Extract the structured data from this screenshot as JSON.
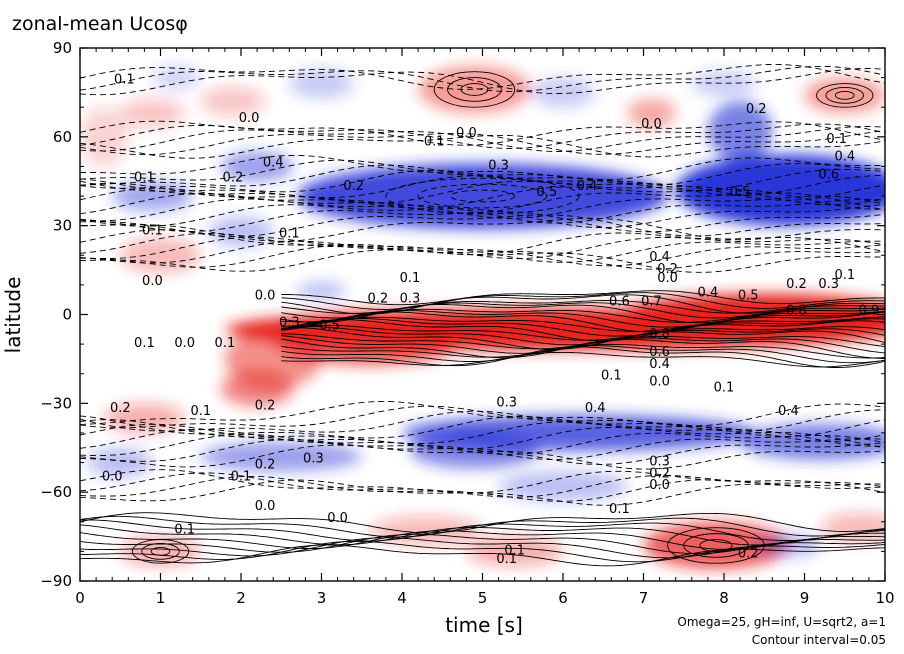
{
  "chart_data": {
    "type": "heatmap",
    "title": "zonal-mean Ucosφ",
    "xlabel": "time [s]",
    "ylabel": "latitude",
    "xlim": [
      0,
      10
    ],
    "ylim": [
      -90,
      90
    ],
    "x_ticks": [
      "0",
      "1",
      "2",
      "3",
      "4",
      "5",
      "6",
      "7",
      "8",
      "9",
      "10"
    ],
    "y_ticks": [
      "90",
      "60",
      "30",
      "0",
      "−30",
      "−60",
      "−90"
    ],
    "colormap": {
      "negative": "#1f2bd6",
      "zero": "#ffffff",
      "positive": "#e8201c"
    },
    "contour_style": "solid for positive values, dashed for negative values",
    "contour_interval": 0.05,
    "notes": [
      "Omega=25, gH=inf, U=sqrt2, a=1",
      "Contour interval=0.05"
    ],
    "features": [
      {
        "kind": "jet",
        "t": [
          0,
          10
        ],
        "lat": -5,
        "sign": 1,
        "peak": 0.9
      },
      {
        "kind": "band",
        "t": [
          0,
          10
        ],
        "lat": 40,
        "sign": -1,
        "peak": 0.6
      },
      {
        "kind": "band",
        "t": [
          0,
          10
        ],
        "lat": -40,
        "sign": -1,
        "peak": 0.4
      },
      {
        "kind": "band",
        "t": [
          0,
          10
        ],
        "lat": -75,
        "sign": 1,
        "peak": 0.3
      },
      {
        "kind": "band",
        "t": [
          0,
          10
        ],
        "lat": 75,
        "sign": 1,
        "peak": 0.2
      }
    ],
    "contour_labels": [
      {
        "t": 0.55,
        "lat": 78,
        "text": "0.1"
      },
      {
        "t": 2.1,
        "lat": 65,
        "text": "0.0"
      },
      {
        "t": 1.9,
        "lat": 45,
        "text": "0.2"
      },
      {
        "t": 2.4,
        "lat": 50,
        "text": "0.4"
      },
      {
        "t": 0.8,
        "lat": 45,
        "text": "0.1"
      },
      {
        "t": 0.9,
        "lat": 27,
        "text": "0.1"
      },
      {
        "t": 2.6,
        "lat": 26,
        "text": "0.1"
      },
      {
        "t": 4.8,
        "lat": 60,
        "text": "0.0"
      },
      {
        "t": 4.4,
        "lat": 57,
        "text": "0.1"
      },
      {
        "t": 3.4,
        "lat": 42,
        "text": "0.2"
      },
      {
        "t": 5.2,
        "lat": 49,
        "text": "0.3"
      },
      {
        "t": 5.8,
        "lat": 40,
        "text": "0.5"
      },
      {
        "t": 6.3,
        "lat": 42,
        "text": "0.4"
      },
      {
        "t": 7.1,
        "lat": 63,
        "text": "0.0"
      },
      {
        "t": 8.4,
        "lat": 68,
        "text": "0.2"
      },
      {
        "t": 8.2,
        "lat": 40,
        "text": "0.5"
      },
      {
        "t": 9.4,
        "lat": 58,
        "text": "0.1"
      },
      {
        "t": 9.5,
        "lat": 52,
        "text": "0.4"
      },
      {
        "t": 9.3,
        "lat": 46,
        "text": "0.6"
      },
      {
        "t": 0.9,
        "lat": 10,
        "text": "0.0"
      },
      {
        "t": 2.3,
        "lat": 5,
        "text": "0.0"
      },
      {
        "t": 4.1,
        "lat": 11,
        "text": "0.1"
      },
      {
        "t": 3.7,
        "lat": 4,
        "text": "0.2"
      },
      {
        "t": 4.1,
        "lat": 4,
        "text": "0.3"
      },
      {
        "t": 3.1,
        "lat": -5,
        "text": "0.5"
      },
      {
        "t": 2.6,
        "lat": -4,
        "text": "0.3"
      },
      {
        "t": 7.2,
        "lat": 18,
        "text": "0.4"
      },
      {
        "t": 7.3,
        "lat": 14,
        "text": "0.2"
      },
      {
        "t": 7.3,
        "lat": 11,
        "text": "0.0"
      },
      {
        "t": 6.7,
        "lat": 3,
        "text": "0.6"
      },
      {
        "t": 7.1,
        "lat": 3,
        "text": "0.7"
      },
      {
        "t": 7.8,
        "lat": 6,
        "text": "0.4"
      },
      {
        "t": 8.3,
        "lat": 5,
        "text": "0.5"
      },
      {
        "t": 8.9,
        "lat": 9,
        "text": "0.2"
      },
      {
        "t": 9.5,
        "lat": 12,
        "text": "0.1"
      },
      {
        "t": 9.3,
        "lat": 9,
        "text": "0.3"
      },
      {
        "t": 8.9,
        "lat": 0,
        "text": "0.8"
      },
      {
        "t": 9.8,
        "lat": 0,
        "text": "0.9"
      },
      {
        "t": 7.2,
        "lat": -8,
        "text": "0.8"
      },
      {
        "t": 7.2,
        "lat": -14,
        "text": "0.6"
      },
      {
        "t": 7.2,
        "lat": -18,
        "text": "0.4"
      },
      {
        "t": 6.6,
        "lat": -22,
        "text": "0.1"
      },
      {
        "t": 7.2,
        "lat": -24,
        "text": "0.0"
      },
      {
        "t": 8.0,
        "lat": -26,
        "text": "0.1"
      },
      {
        "t": 0.8,
        "lat": -11,
        "text": "0.1"
      },
      {
        "t": 1.3,
        "lat": -11,
        "text": "0.0"
      },
      {
        "t": 1.8,
        "lat": -11,
        "text": "0.1"
      },
      {
        "t": 0.5,
        "lat": -33,
        "text": "0.2"
      },
      {
        "t": 1.5,
        "lat": -34,
        "text": "0.1"
      },
      {
        "t": 2.3,
        "lat": -32,
        "text": "0.2"
      },
      {
        "t": 5.3,
        "lat": -31,
        "text": "0.3"
      },
      {
        "t": 6.4,
        "lat": -33,
        "text": "0.4"
      },
      {
        "t": 8.8,
        "lat": -34,
        "text": "0.4"
      },
      {
        "t": 2.3,
        "lat": -52,
        "text": "0.2"
      },
      {
        "t": 2.9,
        "lat": -50,
        "text": "0.3"
      },
      {
        "t": 2.0,
        "lat": -56,
        "text": "0.1"
      },
      {
        "t": 0.4,
        "lat": -56,
        "text": "0.0"
      },
      {
        "t": 2.3,
        "lat": -66,
        "text": "0.0"
      },
      {
        "t": 3.2,
        "lat": -70,
        "text": "0.0"
      },
      {
        "t": 7.2,
        "lat": -51,
        "text": "0.3"
      },
      {
        "t": 7.2,
        "lat": -55,
        "text": "0.2"
      },
      {
        "t": 7.2,
        "lat": -59,
        "text": "0.0"
      },
      {
        "t": 6.7,
        "lat": -67,
        "text": "0.1"
      },
      {
        "t": 1.3,
        "lat": -74,
        "text": "0.1"
      },
      {
        "t": 5.4,
        "lat": -81,
        "text": "0.1"
      },
      {
        "t": 5.3,
        "lat": -84,
        "text": "0.1"
      },
      {
        "t": 8.3,
        "lat": -82,
        "text": "0.2"
      }
    ]
  }
}
